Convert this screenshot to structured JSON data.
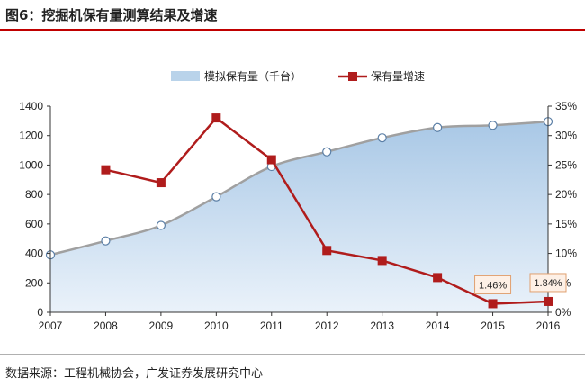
{
  "figure_title": "图6：挖掘机保有量测算结果及增速",
  "source_note": "数据来源：工程机械协会，广发证券发展研究中心",
  "colors": {
    "area_fill": "#b9d3ea",
    "area_edge": "#a0a0a0",
    "growth_line": "#b01c1c",
    "title_rule": "#c00000"
  },
  "chart_data": {
    "type": "area",
    "categories": [
      "2007",
      "2008",
      "2009",
      "2010",
      "2011",
      "2012",
      "2013",
      "2014",
      "2015",
      "2016"
    ],
    "series": [
      {
        "name": "模拟保有量（千台）",
        "type": "area",
        "axis": "left",
        "values": [
          390,
          485,
          590,
          785,
          990,
          1090,
          1185,
          1255,
          1270,
          1295
        ]
      },
      {
        "name": "保有量增速",
        "type": "line",
        "axis": "right",
        "values": [
          null,
          24.2,
          22.0,
          33.0,
          25.9,
          10.5,
          8.8,
          5.9,
          1.46,
          1.84
        ]
      }
    ],
    "annotations": [
      {
        "category": "2015",
        "text": "1.46%"
      },
      {
        "category": "2016",
        "text": "1.84%"
      }
    ],
    "left_axis": {
      "ylim": [
        0,
        1400
      ],
      "ticks": [
        "0",
        "200",
        "400",
        "600",
        "800",
        "1000",
        "1200",
        "1400"
      ]
    },
    "right_axis": {
      "ylim": [
        0,
        35
      ],
      "ticks": [
        "0%",
        "5%",
        "10%",
        "15%",
        "20%",
        "25%",
        "30%",
        "35%"
      ]
    },
    "legend_position": "top-center",
    "grid": false
  }
}
